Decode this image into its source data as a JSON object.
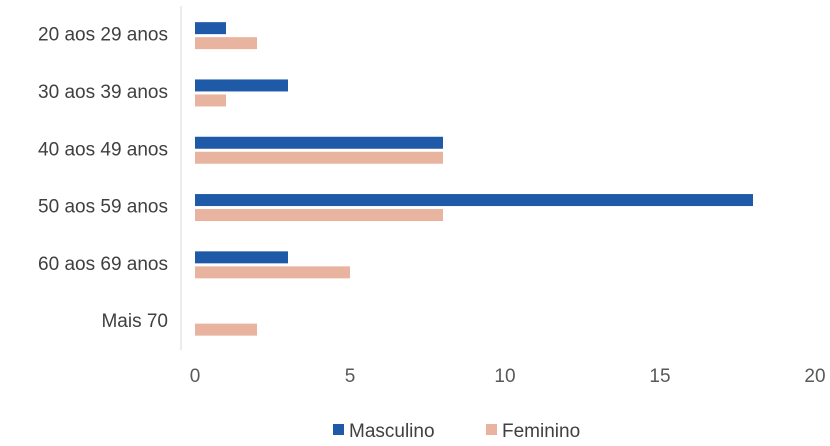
{
  "chart_data": {
    "type": "bar",
    "orientation": "horizontal",
    "categories": [
      "20 aos 29 anos",
      "30 aos 39 anos",
      "40 aos 49 anos",
      "50 aos 59 anos",
      "60 aos 69 anos",
      "Mais  70"
    ],
    "series": [
      {
        "name": "Masculino",
        "color": "#1f5aa8",
        "values": [
          1,
          3,
          8,
          18,
          3,
          0
        ]
      },
      {
        "name": "Feminino",
        "color": "#e8b4a0",
        "values": [
          2,
          1,
          8,
          8,
          5,
          2
        ]
      }
    ],
    "xlim": [
      0,
      20
    ],
    "xticks": [
      "0",
      "5",
      "10",
      "15",
      "20"
    ],
    "grid": false,
    "legend_position": "bottom"
  }
}
